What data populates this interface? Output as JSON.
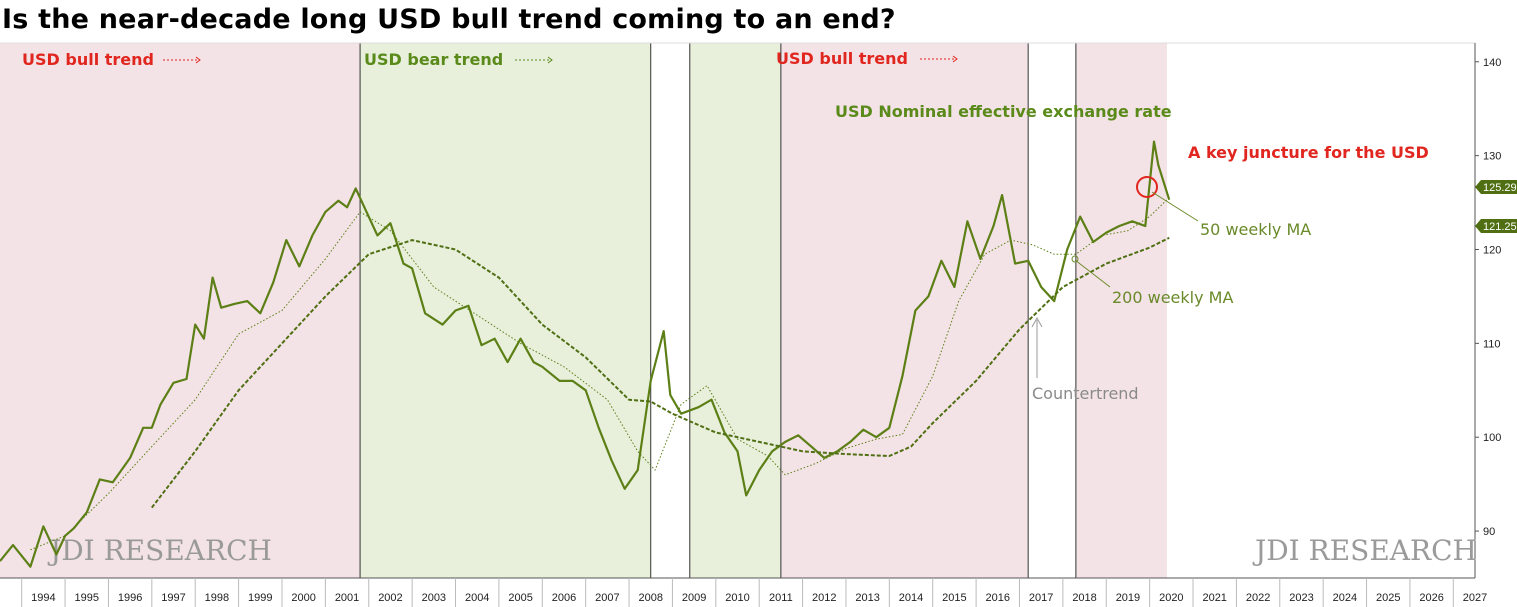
{
  "title": "Is the near-decade long USD bull trend coming to an end?",
  "colors": {
    "bull_zone": "#f4e3e6",
    "bear_zone": "#e8f0dc",
    "series": "#5c7f16",
    "ma": "#4f6f12",
    "bull_text": "#e0261f",
    "bear_text": "#5a8a1a",
    "juncture": "#e0261f",
    "price_badge": "#4f6f12"
  },
  "annotations": {
    "bull1": "USD bull trend",
    "bear": "USD bear trend",
    "bull2": "USD bull trend",
    "series_label": "USD Nominal effective exchange rate",
    "juncture": "A key juncture for the USD",
    "ma50": "50 weekly MA",
    "ma200": "200 weekly MA",
    "countertrend": "Countertrend",
    "watermark_left": "JDI RESEARCH",
    "watermark_right": "JDI RESEARCH"
  },
  "chart_data": {
    "type": "line",
    "x_axis": {
      "labels": [
        "1994",
        "1995",
        "1996",
        "1997",
        "1998",
        "1999",
        "2000",
        "2001",
        "2002",
        "2003",
        "2004",
        "2005",
        "2006",
        "2007",
        "2008",
        "2009",
        "2010",
        "2011",
        "2012",
        "2013",
        "2014",
        "2015",
        "2016",
        "2017",
        "2018",
        "2019",
        "2020",
        "2021",
        "2022",
        "2023",
        "2024",
        "2025",
        "2026",
        "2027"
      ],
      "range": [
        1993.5,
        2027.5
      ]
    },
    "y_axis": {
      "ticks": [
        90,
        100,
        110,
        120,
        130,
        140
      ],
      "range": [
        85,
        142
      ],
      "side": "right"
    },
    "last_values": {
      "series": "125.29",
      "ma200": "121.25"
    },
    "zones": [
      {
        "type": "bull",
        "from": 1993.5,
        "to": 2001.8
      },
      {
        "type": "bear",
        "from": 2001.8,
        "to": 2008.5
      },
      {
        "type": "bear",
        "from": 2009.4,
        "to": 2011.5
      },
      {
        "type": "bull",
        "from": 2011.5,
        "to": 2017.2
      },
      {
        "type": "bull",
        "from": 2018.3,
        "to": 2020.4
      }
    ],
    "vlines": [
      2001.8,
      2008.5,
      2009.4,
      2011.5,
      2017.2,
      2018.3
    ],
    "series": [
      {
        "name": "USD Nominal effective exchange rate",
        "x": [
          1993.5,
          1993.8,
          1994.2,
          1994.5,
          1994.8,
          1995.0,
          1995.2,
          1995.5,
          1995.8,
          1996.1,
          1996.5,
          1996.8,
          1997.0,
          1997.2,
          1997.5,
          1997.8,
          1998.0,
          1998.2,
          1998.4,
          1998.6,
          1998.9,
          1999.2,
          1999.5,
          1999.8,
          2000.1,
          2000.4,
          2000.7,
          2001.0,
          2001.3,
          2001.5,
          2001.7,
          2001.9,
          2002.2,
          2002.5,
          2002.8,
          2003.0,
          2003.3,
          2003.7,
          2004.0,
          2004.3,
          2004.6,
          2004.9,
          2005.2,
          2005.5,
          2005.8,
          2006.0,
          2006.4,
          2006.7,
          2007.0,
          2007.3,
          2007.6,
          2007.9,
          2008.2,
          2008.5,
          2008.8,
          2008.95,
          2009.2,
          2009.6,
          2009.9,
          2010.2,
          2010.5,
          2010.7,
          2011.0,
          2011.3,
          2011.6,
          2011.9,
          2012.2,
          2012.5,
          2012.8,
          2013.1,
          2013.4,
          2013.7,
          2014.0,
          2014.3,
          2014.6,
          2014.9,
          2015.2,
          2015.5,
          2015.8,
          2016.1,
          2016.4,
          2016.6,
          2016.9,
          2017.2,
          2017.5,
          2017.8,
          2018.1,
          2018.4,
          2018.7,
          2019.0,
          2019.3,
          2019.6,
          2019.9,
          2020.1,
          2020.2,
          2020.35,
          2020.45
        ],
        "values": [
          86.8,
          88.5,
          86.2,
          90.5,
          87.5,
          89.5,
          90.3,
          92.0,
          95.5,
          95.2,
          97.8,
          101.0,
          101.0,
          103.5,
          105.8,
          106.2,
          112.0,
          110.5,
          117.0,
          113.8,
          114.2,
          114.5,
          113.2,
          116.5,
          121.0,
          118.2,
          121.5,
          124.0,
          125.2,
          124.5,
          126.5,
          124.5,
          121.5,
          122.8,
          118.5,
          118.0,
          113.2,
          112.0,
          113.5,
          114.0,
          109.8,
          110.5,
          108.0,
          110.5,
          108.0,
          107.5,
          106.0,
          106.0,
          105.0,
          101.0,
          97.5,
          94.5,
          96.5,
          106.0,
          111.3,
          104.5,
          102.5,
          103.2,
          104.0,
          100.5,
          98.5,
          93.8,
          96.5,
          98.5,
          99.5,
          100.2,
          99.0,
          97.8,
          98.5,
          99.5,
          100.8,
          100.0,
          101.0,
          106.5,
          113.5,
          115.0,
          118.8,
          116.0,
          123.0,
          119.0,
          122.5,
          125.8,
          118.5,
          118.8,
          116.0,
          114.5,
          120.0,
          123.5,
          120.8,
          121.8,
          122.5,
          123.0,
          122.5,
          131.5,
          129.0,
          126.8,
          125.3
        ]
      },
      {
        "name": "50 weekly MA",
        "x": [
          1994.2,
          1995.0,
          1996.0,
          1997.0,
          1998.0,
          1999.0,
          2000.0,
          2001.0,
          2001.8,
          2002.5,
          2003.5,
          2004.5,
          2005.5,
          2006.5,
          2007.5,
          2008.2,
          2008.6,
          2009.2,
          2009.8,
          2010.5,
          2011.2,
          2011.6,
          2012.3,
          2013.0,
          2013.7,
          2014.3,
          2015.0,
          2015.6,
          2016.2,
          2016.8,
          2017.3,
          2017.8,
          2018.3,
          2018.9,
          2019.5,
          2020.0,
          2020.4
        ],
        "values": [
          88.0,
          89.5,
          94.0,
          99.0,
          104.0,
          111.0,
          113.5,
          119.0,
          124.0,
          122.0,
          116.0,
          113.0,
          110.0,
          107.5,
          104.0,
          98.5,
          96.5,
          103.5,
          105.5,
          99.8,
          98.0,
          96.0,
          97.2,
          98.8,
          99.8,
          100.3,
          106.5,
          114.5,
          119.5,
          121.0,
          120.5,
          119.5,
          119.5,
          121.5,
          122.0,
          123.5,
          125.3
        ]
      },
      {
        "name": "200 weekly MA",
        "x": [
          1997.0,
          1998.0,
          1999.0,
          2000.0,
          2001.0,
          2002.0,
          2003.0,
          2004.0,
          2005.0,
          2006.0,
          2007.0,
          2008.0,
          2008.5,
          2009.0,
          2010.0,
          2011.0,
          2012.0,
          2013.0,
          2014.0,
          2014.5,
          2015.0,
          2016.0,
          2017.0,
          2018.0,
          2019.0,
          2020.0,
          2020.45
        ],
        "values": [
          92.5,
          98.5,
          105.0,
          110.0,
          115.0,
          119.5,
          121.0,
          120.0,
          117.0,
          112.0,
          108.5,
          104.0,
          103.8,
          102.5,
          100.5,
          99.5,
          98.5,
          98.2,
          98.0,
          99.0,
          101.5,
          106.0,
          111.5,
          116.0,
          118.5,
          120.2,
          121.25
        ]
      }
    ]
  }
}
